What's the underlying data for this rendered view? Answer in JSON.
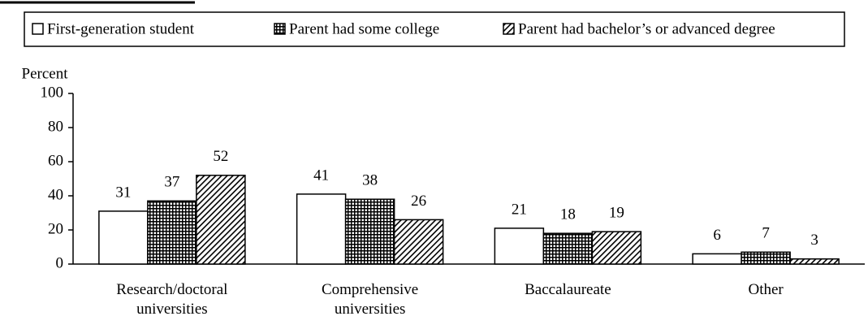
{
  "chart_data": {
    "type": "bar",
    "y_axis_label": "Percent",
    "categories": [
      "Research/doctoral universities",
      "Comprehensive universities",
      "Baccalaureate",
      "Other"
    ],
    "series": [
      {
        "name": "First-generation student",
        "color": "#ffffff",
        "pattern": "solid",
        "values": [
          31,
          41,
          21,
          6
        ]
      },
      {
        "name": "Parent had some college",
        "color": "#000000",
        "pattern": "grid",
        "values": [
          37,
          38,
          18,
          7
        ]
      },
      {
        "name": "Parent had bachelor’s or advanced degree",
        "color": "#000000",
        "pattern": "hatch",
        "values": [
          52,
          26,
          19,
          3
        ]
      }
    ],
    "ylim": [
      0,
      100
    ],
    "yticks": [
      0,
      20,
      40,
      60,
      80,
      100
    ],
    "legend": "top"
  }
}
